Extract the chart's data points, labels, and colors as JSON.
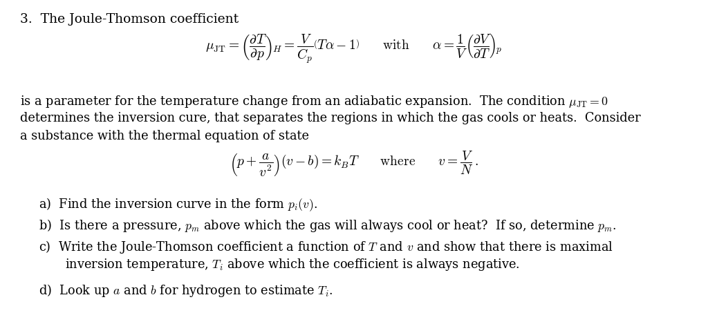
{
  "bg_color": "#ffffff",
  "text_color": "#000000",
  "fig_width": 10.24,
  "fig_height": 4.53,
  "dpi": 100,
  "title": "3.  The Joule-Thomson coefficient",
  "eq1": "$\\mu_{\\mathrm{JT}} = \\left(\\dfrac{\\partial T}{\\partial p}\\right)_{\\!H} = \\dfrac{V}{C_p}\\left(T\\alpha - 1\\right) \\qquad \\mathrm{with} \\qquad \\alpha = \\dfrac{1}{V}\\left(\\dfrac{\\partial V}{\\partial T}\\right)_{\\!p}$",
  "para1": "is a parameter for the temperature change from an adiabatic expansion.  The condition $\\mu_{\\mathrm{JT}} = 0$",
  "para2": "determines the inversion cure, that separates the regions in which the gas cools or heats.  Consider",
  "para3": "a substance with the thermal equation of state",
  "eq2": "$\\left(p + \\dfrac{a}{v^2}\\right)(v - b) = k_B T \\qquad \\mathrm{where} \\qquad v = \\dfrac{V}{N}\\,.$",
  "item_a": "a)  Find the inversion curve in the form $p_i(v)$.",
  "item_b": "b)  Is there a pressure, $p_m$ above which the gas will always cool or heat?  If so, determine $p_m$.",
  "item_c1": "c)  Write the Joule-Thomson coefficient a function of $T$ and $v$ and show that there is maximal",
  "item_c2": "inversion temperature, $T_i$ above which the coefficient is always negative.",
  "item_d": "d)  Look up $a$ and $b$ for hydrogen to estimate $T_i$.",
  "fs_title": 13.5,
  "fs_body": 12.8,
  "fs_eq": 14.0
}
